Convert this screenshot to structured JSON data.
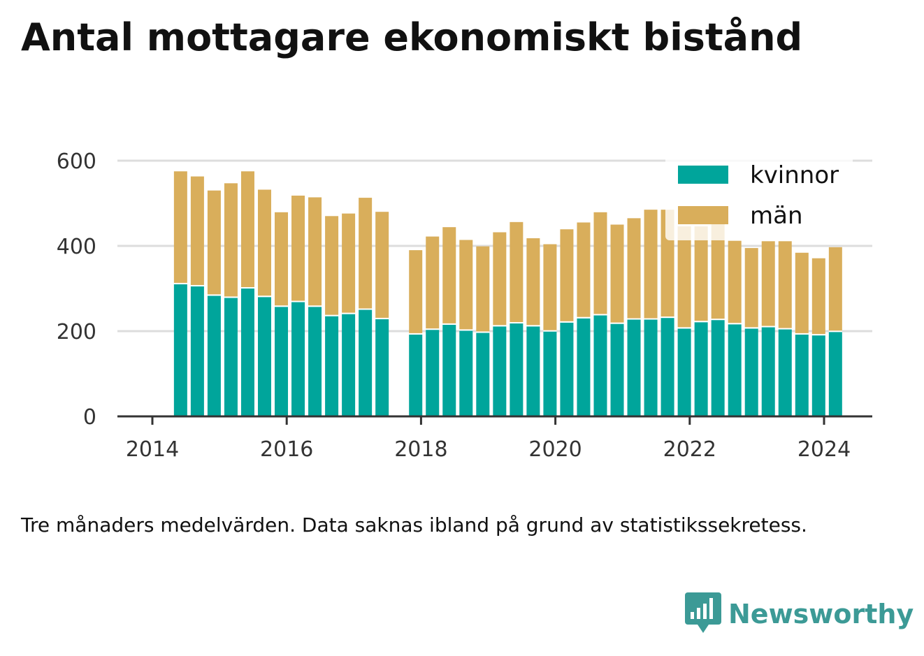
{
  "title": "Antal mottagare ekonomiskt bistånd",
  "note": "Tre månaders medelvärden. Data saknas ibland på grund av statistikssekretess.",
  "brand": {
    "name": "Newsworthy",
    "icon": "newsworthy-logo-icon"
  },
  "colors": {
    "kvinnor": "#00a59b",
    "man": "#d9ae5b",
    "grid": "#dddddd",
    "axis": "#333333",
    "brand": "#3c9a96"
  },
  "chart_data": {
    "type": "bar",
    "stacked": true,
    "title": "Antal mottagare ekonomiskt bistånd",
    "xlabel": "",
    "ylabel": "",
    "ylim": [
      0,
      600
    ],
    "yticks": [
      0,
      200,
      400,
      600
    ],
    "xticks": [
      2014,
      2016,
      2018,
      2020,
      2022,
      2024
    ],
    "grid": true,
    "legend": "top-right",
    "x": [
      2014.42,
      2014.67,
      2014.92,
      2015.17,
      2015.42,
      2015.67,
      2015.92,
      2016.17,
      2016.42,
      2016.67,
      2016.92,
      2017.17,
      2017.42,
      2017.92,
      2018.17,
      2018.42,
      2018.67,
      2018.92,
      2019.17,
      2019.42,
      2019.67,
      2019.92,
      2020.17,
      2020.42,
      2020.67,
      2020.92,
      2021.17,
      2021.42,
      2021.67,
      2021.92,
      2022.17,
      2022.42,
      2022.67,
      2022.92,
      2023.17,
      2023.42,
      2023.67,
      2023.92,
      2024.17
    ],
    "series": [
      {
        "name": "kvinnor",
        "values": [
          310,
          305,
          283,
          278,
          300,
          280,
          257,
          268,
          257,
          235,
          240,
          250,
          228,
          192,
          203,
          215,
          201,
          196,
          211,
          218,
          211,
          199,
          220,
          230,
          237,
          217,
          227,
          227,
          231,
          206,
          221,
          226,
          216,
          206,
          209,
          204,
          192,
          190,
          198
        ]
      },
      {
        "name": "män",
        "values": [
          265,
          258,
          247,
          269,
          275,
          252,
          222,
          250,
          257,
          235,
          236,
          263,
          252,
          198,
          219,
          229,
          213,
          203,
          221,
          238,
          207,
          205,
          219,
          225,
          242,
          233,
          238,
          258,
          254,
          240,
          225,
          229,
          196,
          189,
          202,
          207,
          192,
          181,
          199
        ]
      }
    ]
  }
}
